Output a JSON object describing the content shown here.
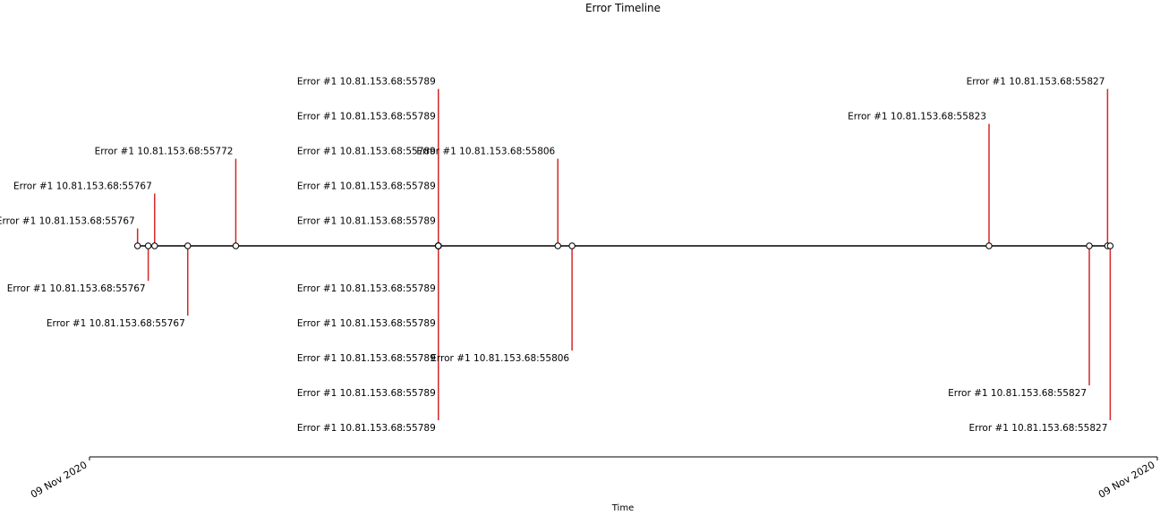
{
  "chart_data": {
    "type": "timeline",
    "title": "Error Timeline",
    "xlabel": "Time",
    "ylabel": "",
    "x_tick_labels": [
      "09 Nov 2020",
      "09 Nov 2020"
    ],
    "stem_color": "#d62728",
    "events": [
      {
        "label": "Error #1 10.81.153.68:55767",
        "x_frac": 0.045,
        "level": 1
      },
      {
        "label": "Error #1 10.81.153.68:55767",
        "x_frac": 0.055,
        "level": -2
      },
      {
        "label": "Error #1 10.81.153.68:55767",
        "x_frac": 0.061,
        "level": 3
      },
      {
        "label": "Error #1 10.81.153.68:55767",
        "x_frac": 0.092,
        "level": -4
      },
      {
        "label": "Error #1 10.81.153.68:55772",
        "x_frac": 0.137,
        "level": 5
      },
      {
        "label": "Error #1 10.81.153.68:55789",
        "x_frac": 0.3267,
        "level": 1
      },
      {
        "label": "Error #1 10.81.153.68:55789",
        "x_frac": 0.3267,
        "level": -2
      },
      {
        "label": "Error #1 10.81.153.68:55789",
        "x_frac": 0.3267,
        "level": 3
      },
      {
        "label": "Error #1 10.81.153.68:55789",
        "x_frac": 0.3267,
        "level": -4
      },
      {
        "label": "Error #1 10.81.153.68:55789",
        "x_frac": 0.3267,
        "level": 5
      },
      {
        "label": "Error #1 10.81.153.68:55789",
        "x_frac": 0.3267,
        "level": -6
      },
      {
        "label": "Error #1 10.81.153.68:55789",
        "x_frac": 0.3267,
        "level": 7
      },
      {
        "label": "Error #1 10.81.153.68:55789",
        "x_frac": 0.3267,
        "level": -8
      },
      {
        "label": "Error #1 10.81.153.68:55789",
        "x_frac": 0.3267,
        "level": 9
      },
      {
        "label": "Error #1 10.81.153.68:55789",
        "x_frac": 0.3267,
        "level": -10
      },
      {
        "label": "Error #1 10.81.153.68:55806",
        "x_frac": 0.4386,
        "level": 5
      },
      {
        "label": "Error #1 10.81.153.68:55806",
        "x_frac": 0.4519,
        "level": -6
      },
      {
        "label": "Error #1 10.81.153.68:55823",
        "x_frac": 0.8424,
        "level": 7
      },
      {
        "label": "Error #1 10.81.153.68:55827",
        "x_frac": 0.9363,
        "level": -8
      },
      {
        "label": "Error #1 10.81.153.68:55827",
        "x_frac": 0.9534,
        "level": 9
      },
      {
        "label": "Error #1 10.81.153.68:55827",
        "x_frac": 0.9559,
        "level": -10
      }
    ]
  }
}
